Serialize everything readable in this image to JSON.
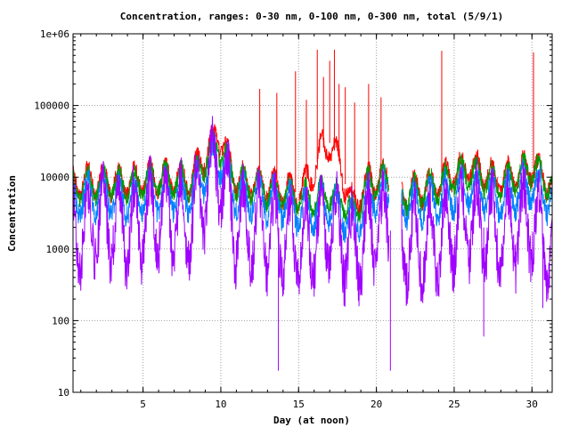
{
  "chart_data": {
    "type": "line",
    "title": "Concentration, ranges: 0-30 nm, 0-100 nm, 0-300 nm, total (5/9/1)",
    "xlabel": "Day (at noon)",
    "ylabel": "Concentration",
    "xlim": [
      0.5,
      31.3
    ],
    "ylim": [
      10,
      1000000
    ],
    "yscale": "log",
    "grid": true,
    "xticks": [
      5,
      10,
      15,
      20,
      25,
      30
    ],
    "xtick_labels": [
      "5",
      "10",
      "15",
      "20",
      "25",
      "30"
    ],
    "yticks": [
      10,
      100,
      1000,
      10000,
      100000,
      1000000
    ],
    "ytick_labels": [
      "10",
      "100",
      "1000",
      "10000",
      "100000",
      "1e+06"
    ],
    "gaps": [
      [
        20.8,
        21.6
      ]
    ],
    "series": [
      {
        "color": "#ff0000",
        "x": [
          0.5,
          2,
          4,
          6,
          8,
          9.8,
          11,
          12.5,
          14,
          15,
          16,
          16.5,
          17,
          17.5,
          18,
          18.5,
          19.5,
          20.7,
          21.7,
          23,
          24.2,
          25,
          26,
          28,
          30,
          31.3
        ],
        "values": [
          8000,
          9000,
          8500,
          10000,
          9000,
          40000,
          9000,
          8000,
          7000,
          6000,
          12000,
          25000,
          30000,
          20000,
          8000,
          4000,
          9000,
          10000,
          6000,
          7000,
          9000,
          12000,
          14000,
          9000,
          14000,
          8000
        ],
        "spikes": [
          [
            12.5,
            170000
          ],
          [
            13.6,
            150000
          ],
          [
            14.8,
            300000
          ],
          [
            15.5,
            120000
          ],
          [
            16.2,
            600000
          ],
          [
            16.6,
            250000
          ],
          [
            17.0,
            420000
          ],
          [
            17.3,
            600000
          ],
          [
            17.6,
            200000
          ],
          [
            18.0,
            180000
          ],
          [
            18.6,
            110000
          ],
          [
            19.5,
            200000
          ],
          [
            20.3,
            130000
          ],
          [
            24.2,
            580000
          ],
          [
            30.1,
            550000
          ]
        ]
      },
      {
        "color": "#009900",
        "x": [
          0.5,
          2,
          4,
          6,
          8,
          9.8,
          11,
          12.5,
          14,
          15,
          16,
          16.5,
          17,
          17.5,
          18,
          18.5,
          19.5,
          20.7,
          21.7,
          23,
          24.2,
          25,
          26,
          28,
          30,
          31.3
        ],
        "values": [
          7000,
          8000,
          8000,
          9500,
          8500,
          30000,
          8500,
          7000,
          6000,
          5000,
          5000,
          5500,
          6000,
          5000,
          4500,
          3000,
          8000,
          9000,
          5500,
          6500,
          8000,
          10000,
          12000,
          8000,
          13000,
          7500
        ]
      },
      {
        "color": "#0080ff",
        "x": [
          0.5,
          2,
          4,
          6,
          8,
          9.8,
          11,
          12.5,
          14,
          15,
          16,
          16.5,
          17,
          17.5,
          18,
          18.5,
          19.5,
          20.7,
          21.7,
          23,
          24.2,
          25,
          26,
          28,
          30,
          31.3
        ],
        "values": [
          5000,
          5500,
          5000,
          6000,
          5500,
          20000,
          5500,
          5000,
          4500,
          3500,
          3500,
          4000,
          4500,
          3500,
          3000,
          2200,
          5000,
          6000,
          4000,
          4500,
          5000,
          6000,
          7500,
          5000,
          8000,
          4500
        ]
      },
      {
        "color": "#a000ff",
        "x": [
          0.5,
          2,
          4,
          6,
          8,
          9.8,
          11,
          12.5,
          14,
          15,
          16,
          16.5,
          17,
          17.5,
          18,
          18.5,
          19.5,
          20.7,
          21.7,
          23,
          24.2,
          25,
          26,
          28,
          30,
          31.3
        ],
        "values": [
          1500,
          2500,
          2000,
          3000,
          2200,
          15000,
          2000,
          1800,
          1500,
          1200,
          1500,
          1800,
          2000,
          1500,
          1200,
          900,
          1800,
          2000,
          1200,
          1100,
          1500,
          1800,
          2500,
          1500,
          2500,
          800
        ],
        "dips": [
          [
            13.7,
            20
          ],
          [
            20.9,
            20
          ],
          [
            26.9,
            60
          ],
          [
            30.7,
            150
          ]
        ]
      }
    ]
  }
}
